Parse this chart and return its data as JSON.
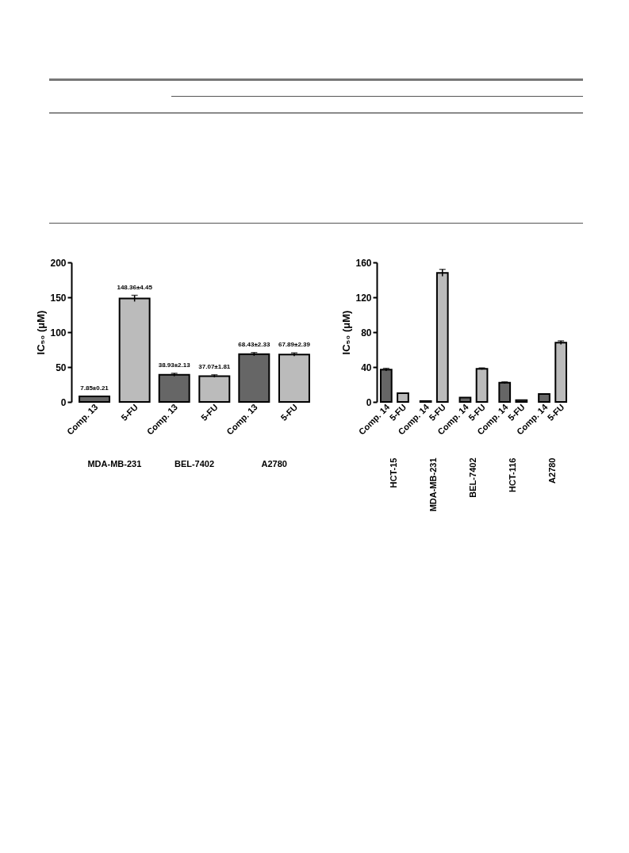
{
  "chart_data": [
    {
      "type": "bar",
      "ylabel": "IC₅₀ (μM)",
      "categories": [
        "MDA-MB-231",
        "BEL-7402",
        "A2780"
      ],
      "ylim": [
        0,
        200
      ],
      "yticks": [
        0,
        50,
        100,
        150,
        200
      ],
      "grid": false,
      "legend": false,
      "series": [
        {
          "name": "Comp. 13",
          "color": "#666666",
          "values": [
            7.85,
            38.93,
            68.43
          ],
          "errors": [
            0.21,
            2.13,
            2.33
          ],
          "value_labels": [
            "7.85±0.21",
            "38.93±2.13",
            "68.43±2.33"
          ]
        },
        {
          "name": "5-FU",
          "color": "#bbbbbb",
          "values": [
            148.36,
            37.07,
            67.89
          ],
          "errors": [
            4.45,
            1.81,
            2.39
          ],
          "value_labels": [
            "148.36±4.45",
            "37.07±1.81",
            "67.89±2.39"
          ]
        }
      ]
    },
    {
      "type": "bar",
      "ylabel": "IC₅₀ (μM)",
      "categories": [
        "HCT-15",
        "MDA-MB-231",
        "BEL-7402",
        "HCT-116",
        "A2780"
      ],
      "ylim": [
        0,
        160
      ],
      "yticks": [
        0,
        40,
        80,
        120,
        160
      ],
      "grid": false,
      "legend": false,
      "series": [
        {
          "name": "Comp. 14",
          "color": "#666666",
          "values": [
            37,
            1,
            5,
            22,
            9
          ],
          "errors": [
            1.5,
            null,
            null,
            1,
            null
          ]
        },
        {
          "name": "5-FU",
          "color": "#bbbbbb",
          "values": [
            10,
            148,
            38,
            2,
            68
          ],
          "errors": [
            null,
            4,
            1,
            null,
            2
          ]
        }
      ]
    }
  ]
}
